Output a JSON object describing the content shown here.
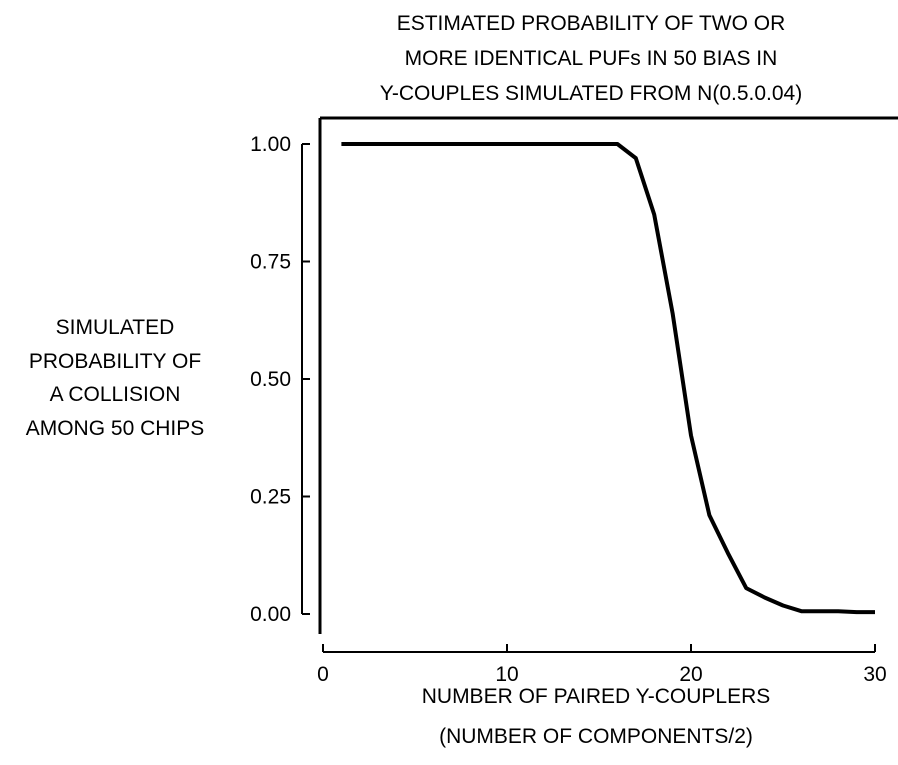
{
  "chart_data": {
    "type": "line",
    "title_lines": [
      "ESTIMATED PROBABILITY OF TWO OR",
      "MORE IDENTICAL PUFs IN 50 BIAS IN",
      "Y-COUPLES SIMULATED FROM N(0.5.0.04)"
    ],
    "ylabel_lines": [
      "SIMULATED",
      "PROBABILITY OF",
      "A COLLISION",
      "AMONG 50 CHIPS"
    ],
    "xlabel_lines": [
      "NUMBER OF PAIRED Y-COUPLERS",
      "(NUMBER OF COMPONENTS/2)"
    ],
    "xlim": [
      0,
      30
    ],
    "ylim": [
      0,
      1
    ],
    "x_ticks": [
      0,
      10,
      20,
      30
    ],
    "x_tick_labels": [
      "0",
      "10",
      "20",
      "30"
    ],
    "y_ticks": [
      0,
      0.25,
      0.5,
      0.75,
      1
    ],
    "y_tick_labels": [
      "0.00",
      "0.25",
      "0.50",
      "0.75",
      "1.00"
    ],
    "grid": false,
    "line_color": "#000000",
    "series": [
      {
        "x": [
          1,
          2,
          3,
          4,
          5,
          6,
          7,
          8,
          9,
          10,
          11,
          12,
          13,
          14,
          15,
          16,
          17,
          18,
          19,
          20,
          21,
          22,
          23,
          24,
          25,
          26,
          27,
          28,
          29,
          30
        ],
        "y": [
          1.0,
          1.0,
          1.0,
          1.0,
          1.0,
          1.0,
          1.0,
          1.0,
          1.0,
          1.0,
          1.0,
          1.0,
          1.0,
          1.0,
          1.0,
          1.0,
          0.97,
          0.85,
          0.64,
          0.38,
          0.21,
          0.13,
          0.055,
          0.035,
          0.018,
          0.006,
          0.006,
          0.006,
          0.004,
          0.004
        ]
      }
    ]
  }
}
